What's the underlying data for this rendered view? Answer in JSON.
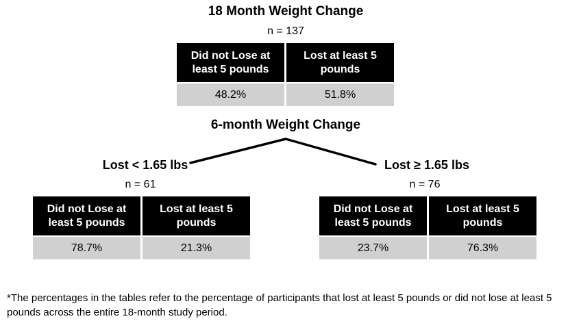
{
  "colors": {
    "header_fill": "#000000",
    "header_text": "#ffffff",
    "value_fill": "#d0d0d0",
    "connector": "#000000"
  },
  "top": {
    "title": "18 Month Weight Change",
    "n": "n = 137",
    "headers": [
      "Did not Lose at least 5 pounds",
      "Lost at least 5 pounds"
    ],
    "values": [
      "48.2%",
      "51.8%"
    ]
  },
  "split": {
    "title": "6-month Weight Change"
  },
  "left": {
    "title": "Lost < 1.65 lbs",
    "n": "n = 61",
    "headers": [
      "Did not Lose at least 5 pounds",
      "Lost at least 5 pounds"
    ],
    "values": [
      "78.7%",
      "21.3%"
    ]
  },
  "right": {
    "title": "Lost ≥ 1.65 lbs",
    "n": "n = 76",
    "headers": [
      "Did not Lose at least 5 pounds",
      "Lost at least 5 pounds"
    ],
    "values": [
      "23.7%",
      "76.3%"
    ]
  },
  "footnote": "*The percentages in the tables refer to the percentage of participants that lost at least 5 pounds or did not lose at least 5 pounds across the entire 18-month study period."
}
